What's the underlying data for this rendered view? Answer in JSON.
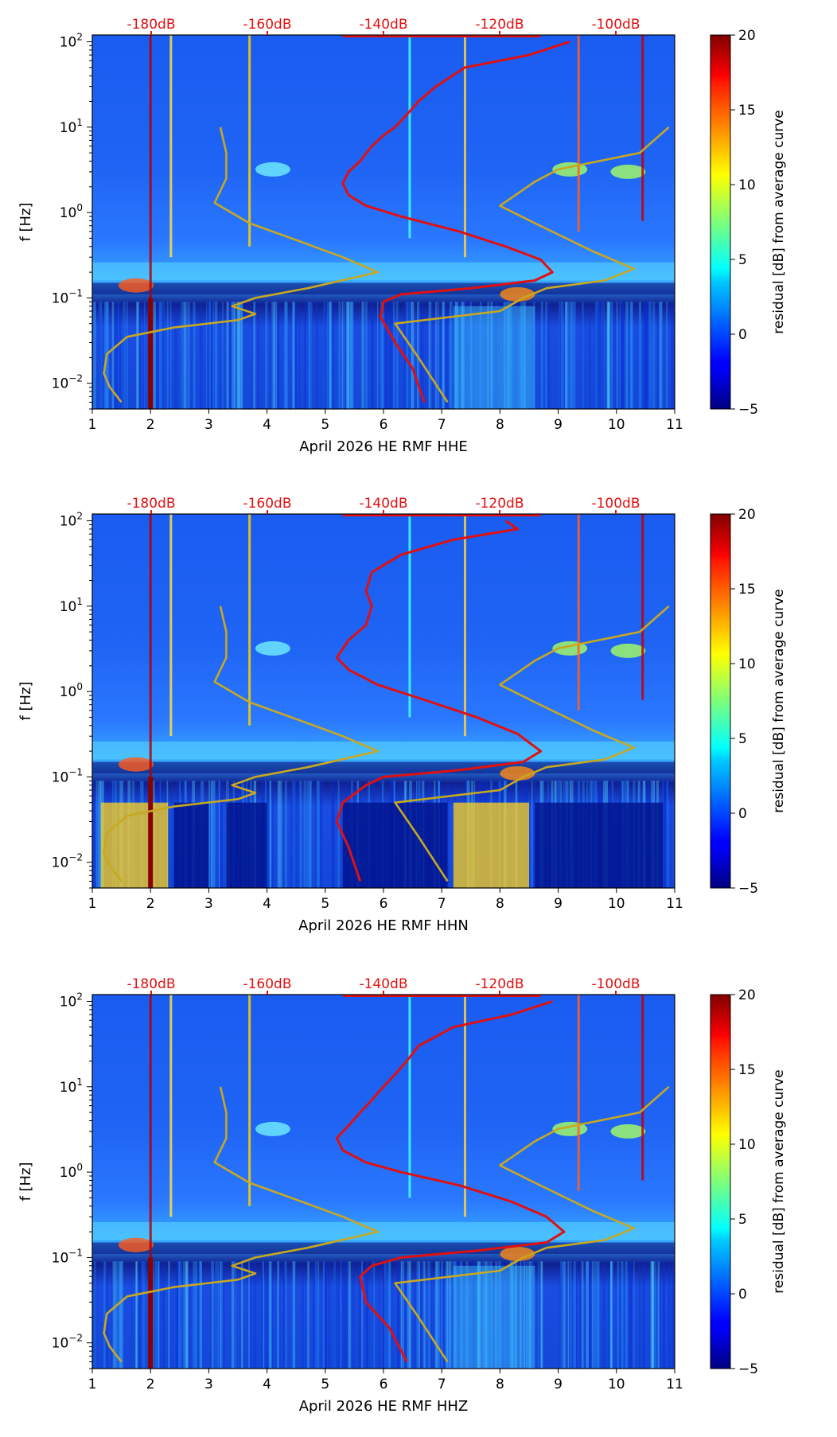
{
  "chart_data": [
    {
      "type": "heatmap",
      "xlabel": "April 2026 HE RMF  HHE",
      "ylabel": "f [Hz]",
      "xlim": [
        1,
        11
      ],
      "xticks": [
        1,
        2,
        3,
        4,
        5,
        6,
        7,
        8,
        9,
        10,
        11
      ],
      "ylim": [
        0.005,
        120
      ],
      "yscale": "log",
      "yticks": [
        "10^-2",
        "10^-1",
        "10^0",
        "10^1",
        "10^2"
      ],
      "top_ticks": [
        "-180dB",
        "-160dB",
        "-140dB",
        "-120dB",
        "-100dB"
      ],
      "colorbar": {
        "label": "residual [dB] from average curve",
        "ticks": [
          20,
          15,
          10,
          5,
          0,
          -5
        ],
        "range": [
          -5,
          20
        ],
        "colormap": "jet"
      },
      "series": [
        {
          "color": "#e01010",
          "points": [
            [
              9.2,
              100
            ],
            [
              8.5,
              70
            ],
            [
              7.4,
              50
            ],
            [
              6.9,
              30
            ],
            [
              6.6,
              20
            ],
            [
              6.4,
              14
            ],
            [
              6.2,
              10
            ],
            [
              6.0,
              8
            ],
            [
              5.8,
              6
            ],
            [
              5.6,
              4
            ],
            [
              5.4,
              3
            ],
            [
              5.3,
              2.2
            ],
            [
              5.4,
              1.6
            ],
            [
              5.7,
              1.2
            ],
            [
              6.3,
              0.9
            ],
            [
              7.3,
              0.6
            ],
            [
              8.1,
              0.4
            ],
            [
              8.7,
              0.28
            ],
            [
              8.9,
              0.2
            ],
            [
              8.6,
              0.16
            ],
            [
              7.5,
              0.13
            ],
            [
              6.3,
              0.11
            ],
            [
              6.0,
              0.09
            ],
            [
              5.95,
              0.06
            ],
            [
              6.2,
              0.03
            ],
            [
              6.5,
              0.015
            ],
            [
              6.7,
              0.006
            ]
          ]
        },
        {
          "color": "#c8a820",
          "points": [
            [
              3.2,
              10
            ],
            [
              3.3,
              5
            ],
            [
              3.3,
              2.5
            ],
            [
              3.1,
              1.3
            ],
            [
              3.7,
              0.75
            ],
            [
              4.6,
              0.45
            ],
            [
              5.3,
              0.3
            ],
            [
              5.9,
              0.2
            ],
            [
              4.7,
              0.13
            ],
            [
              3.8,
              0.1
            ],
            [
              3.4,
              0.08
            ],
            [
              3.8,
              0.065
            ],
            [
              3.5,
              0.055
            ],
            [
              2.4,
              0.045
            ],
            [
              1.6,
              0.035
            ],
            [
              1.25,
              0.022
            ],
            [
              1.2,
              0.013
            ],
            [
              1.3,
              0.009
            ],
            [
              1.5,
              0.006
            ]
          ]
        },
        {
          "color": "#c8a820",
          "points": [
            [
              10.9,
              10
            ],
            [
              10.4,
              5
            ],
            [
              9.0,
              3.2
            ],
            [
              8.6,
              2.3
            ],
            [
              8.0,
              1.2
            ],
            [
              8.6,
              0.75
            ],
            [
              9.6,
              0.35
            ],
            [
              10.3,
              0.22
            ],
            [
              9.8,
              0.16
            ],
            [
              8.8,
              0.13
            ],
            [
              8.4,
              0.1
            ],
            [
              8.0,
              0.07
            ],
            [
              6.2,
              0.05
            ],
            [
              6.6,
              0.02
            ],
            [
              7.1,
              0.006
            ]
          ]
        }
      ]
    },
    {
      "type": "heatmap",
      "xlabel": "April 2026 HE RMF  HHN",
      "ylabel": "f [Hz]",
      "xlim": [
        1,
        11
      ],
      "xticks": [
        1,
        2,
        3,
        4,
        5,
        6,
        7,
        8,
        9,
        10,
        11
      ],
      "ylim": [
        0.005,
        120
      ],
      "yscale": "log",
      "yticks": [
        "10^-2",
        "10^-1",
        "10^0",
        "10^1",
        "10^2"
      ],
      "top_ticks": [
        "-180dB",
        "-160dB",
        "-140dB",
        "-120dB",
        "-100dB"
      ],
      "colorbar": {
        "label": "residual [dB] from average curve",
        "ticks": [
          20,
          15,
          10,
          5,
          0,
          -5
        ],
        "range": [
          -5,
          20
        ],
        "colormap": "jet"
      },
      "series": [
        {
          "color": "#e01010",
          "points": [
            [
              8.1,
              100
            ],
            [
              8.3,
              80
            ],
            [
              7.2,
              60
            ],
            [
              6.3,
              40
            ],
            [
              5.8,
              25
            ],
            [
              5.7,
              15
            ],
            [
              5.8,
              10
            ],
            [
              5.7,
              6
            ],
            [
              5.4,
              4
            ],
            [
              5.2,
              2.5
            ],
            [
              5.4,
              1.8
            ],
            [
              5.9,
              1.2
            ],
            [
              6.7,
              0.8
            ],
            [
              7.6,
              0.5
            ],
            [
              8.3,
              0.32
            ],
            [
              8.7,
              0.2
            ],
            [
              8.4,
              0.15
            ],
            [
              7.3,
              0.12
            ],
            [
              6.0,
              0.1
            ],
            [
              5.7,
              0.08
            ],
            [
              5.3,
              0.05
            ],
            [
              5.2,
              0.03
            ],
            [
              5.4,
              0.015
            ],
            [
              5.6,
              0.006
            ]
          ]
        },
        {
          "color": "#c8a820",
          "points": [
            [
              3.2,
              10
            ],
            [
              3.3,
              5
            ],
            [
              3.3,
              2.5
            ],
            [
              3.1,
              1.3
            ],
            [
              3.7,
              0.75
            ],
            [
              4.6,
              0.45
            ],
            [
              5.3,
              0.3
            ],
            [
              5.9,
              0.2
            ],
            [
              4.7,
              0.13
            ],
            [
              3.8,
              0.1
            ],
            [
              3.4,
              0.08
            ],
            [
              3.8,
              0.065
            ],
            [
              3.5,
              0.055
            ],
            [
              2.4,
              0.045
            ],
            [
              1.6,
              0.035
            ],
            [
              1.25,
              0.022
            ],
            [
              1.2,
              0.013
            ],
            [
              1.3,
              0.009
            ],
            [
              1.5,
              0.006
            ]
          ]
        },
        {
          "color": "#c8a820",
          "points": [
            [
              10.9,
              10
            ],
            [
              10.4,
              5
            ],
            [
              9.0,
              3.2
            ],
            [
              8.6,
              2.3
            ],
            [
              8.0,
              1.2
            ],
            [
              8.6,
              0.75
            ],
            [
              9.6,
              0.35
            ],
            [
              10.3,
              0.22
            ],
            [
              9.8,
              0.16
            ],
            [
              8.8,
              0.13
            ],
            [
              8.4,
              0.1
            ],
            [
              8.0,
              0.07
            ],
            [
              6.2,
              0.05
            ],
            [
              6.6,
              0.02
            ],
            [
              7.1,
              0.006
            ]
          ]
        }
      ]
    },
    {
      "type": "heatmap",
      "xlabel": "April 2026 HE RMF  HHZ",
      "ylabel": "f [Hz]",
      "xlim": [
        1,
        11
      ],
      "xticks": [
        1,
        2,
        3,
        4,
        5,
        6,
        7,
        8,
        9,
        10,
        11
      ],
      "ylim": [
        0.005,
        120
      ],
      "yscale": "log",
      "yticks": [
        "10^-2",
        "10^-1",
        "10^0",
        "10^1",
        "10^2"
      ],
      "top_ticks": [
        "-180dB",
        "-160dB",
        "-140dB",
        "-120dB",
        "-100dB"
      ],
      "colorbar": {
        "label": "residual [dB] from average curve",
        "ticks": [
          20,
          15,
          10,
          5,
          0,
          -5
        ],
        "range": [
          -5,
          20
        ],
        "colormap": "jet"
      },
      "series": [
        {
          "color": "#e01010",
          "points": [
            [
              8.9,
              100
            ],
            [
              8.2,
              70
            ],
            [
              7.2,
              50
            ],
            [
              6.6,
              30
            ],
            [
              6.4,
              20
            ],
            [
              6.2,
              14
            ],
            [
              6.0,
              10
            ],
            [
              5.8,
              7
            ],
            [
              5.6,
              5
            ],
            [
              5.4,
              3.5
            ],
            [
              5.2,
              2.5
            ],
            [
              5.3,
              1.8
            ],
            [
              5.7,
              1.3
            ],
            [
              6.3,
              1.0
            ],
            [
              7.3,
              0.7
            ],
            [
              8.2,
              0.45
            ],
            [
              8.8,
              0.3
            ],
            [
              9.1,
              0.2
            ],
            [
              8.8,
              0.15
            ],
            [
              7.6,
              0.12
            ],
            [
              6.3,
              0.1
            ],
            [
              5.8,
              0.08
            ],
            [
              5.6,
              0.06
            ],
            [
              5.7,
              0.03
            ],
            [
              6.1,
              0.015
            ],
            [
              6.4,
              0.006
            ]
          ]
        },
        {
          "color": "#c8a820",
          "points": [
            [
              3.2,
              10
            ],
            [
              3.3,
              5
            ],
            [
              3.3,
              2.5
            ],
            [
              3.1,
              1.3
            ],
            [
              3.7,
              0.75
            ],
            [
              4.6,
              0.45
            ],
            [
              5.3,
              0.3
            ],
            [
              5.9,
              0.2
            ],
            [
              4.7,
              0.13
            ],
            [
              3.8,
              0.1
            ],
            [
              3.4,
              0.08
            ],
            [
              3.8,
              0.065
            ],
            [
              3.5,
              0.055
            ],
            [
              2.4,
              0.045
            ],
            [
              1.6,
              0.035
            ],
            [
              1.25,
              0.022
            ],
            [
              1.2,
              0.013
            ],
            [
              1.3,
              0.009
            ],
            [
              1.5,
              0.006
            ]
          ]
        },
        {
          "color": "#c8a820",
          "points": [
            [
              10.9,
              10
            ],
            [
              10.4,
              5
            ],
            [
              9.0,
              3.2
            ],
            [
              8.6,
              2.3
            ],
            [
              8.0,
              1.2
            ],
            [
              8.6,
              0.75
            ],
            [
              9.6,
              0.35
            ],
            [
              10.3,
              0.22
            ],
            [
              9.8,
              0.16
            ],
            [
              8.8,
              0.13
            ],
            [
              8.4,
              0.1
            ],
            [
              8.0,
              0.07
            ],
            [
              6.2,
              0.05
            ],
            [
              6.6,
              0.02
            ],
            [
              7.1,
              0.006
            ]
          ]
        }
      ]
    }
  ]
}
